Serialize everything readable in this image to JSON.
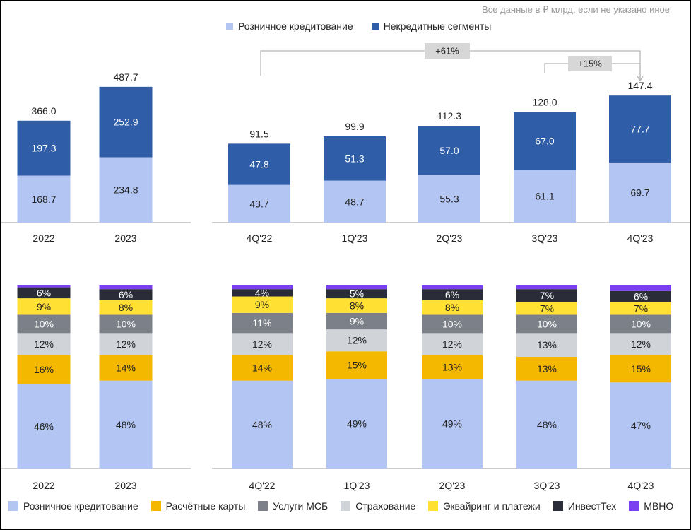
{
  "note": "Все данные в ₽ млрд, если не указано иное",
  "legend_top": [
    {
      "label": "Розничное кредитование",
      "color": "#b3c5f3"
    },
    {
      "label": "Некредитные сегменты",
      "color": "#2f5da8"
    }
  ],
  "legend_bottom": [
    {
      "label": "Розничное кредитование",
      "color": "#b3c5f3"
    },
    {
      "label": "Расчётные карты",
      "color": "#f5b800"
    },
    {
      "label": "Услуги МСБ",
      "color": "#7c8089"
    },
    {
      "label": "Страхование",
      "color": "#d0d3d8"
    },
    {
      "label": "Эквайринг и платежи",
      "color": "#ffe033"
    },
    {
      "label": "ИнвестТех",
      "color": "#2a2d38"
    },
    {
      "label": "МВНО",
      "color": "#7b3ff2"
    }
  ],
  "chart_data": [
    {
      "type": "bar",
      "stacked": true,
      "panel": "annual-revenue",
      "categories": [
        "2022",
        "2023"
      ],
      "series": [
        {
          "name": "Розничное кредитование",
          "values": [
            168.7,
            234.8
          ],
          "labels": [
            "168.7",
            "234.8"
          ]
        },
        {
          "name": "Некредитные сегменты",
          "values": [
            197.3,
            252.9
          ],
          "labels": [
            "197.3",
            "252.9"
          ]
        }
      ],
      "totals": [
        "366.0",
        "487.7"
      ]
    },
    {
      "type": "bar",
      "stacked": true,
      "panel": "quarterly-revenue",
      "categories": [
        "4Q'22",
        "1Q'23",
        "2Q'23",
        "3Q'23",
        "4Q'23"
      ],
      "series": [
        {
          "name": "Розничное кредитование",
          "values": [
            43.7,
            48.7,
            55.3,
            61.1,
            69.7
          ],
          "labels": [
            "43.7",
            "48.7",
            "55.3",
            "61.1",
            "69.7"
          ]
        },
        {
          "name": "Некредитные сегменты",
          "values": [
            47.8,
            51.3,
            57.0,
            67.0,
            77.7
          ],
          "labels": [
            "47.8",
            "51.3",
            "57.0",
            "67.0",
            "77.7"
          ]
        }
      ],
      "totals": [
        "91.5",
        "99.9",
        "112.3",
        "128.0",
        "147.4"
      ],
      "annotations": [
        "+61%",
        "+15%"
      ]
    },
    {
      "type": "bar",
      "stacked": true,
      "percent": true,
      "panel": "annual-structure",
      "categories": [
        "2022",
        "2023"
      ],
      "series": [
        {
          "name": "Розничное кредитование",
          "values": [
            46,
            48
          ],
          "labels": [
            "46%",
            "48%"
          ]
        },
        {
          "name": "Расчётные карты",
          "values": [
            16,
            14
          ],
          "labels": [
            "16%",
            "14%"
          ]
        },
        {
          "name": "Страхование",
          "values": [
            12,
            12
          ],
          "labels": [
            "12%",
            "12%"
          ]
        },
        {
          "name": "Услуги МСБ",
          "values": [
            10,
            10
          ],
          "labels": [
            "10%",
            "10%"
          ]
        },
        {
          "name": "Эквайринг и платежи",
          "values": [
            9,
            8
          ],
          "labels": [
            "9%",
            "8%"
          ]
        },
        {
          "name": "ИнвестТех",
          "values": [
            6,
            6
          ],
          "labels": [
            "6%",
            "6%"
          ]
        },
        {
          "name": "МВНО",
          "values": [
            1,
            2
          ],
          "labels": [
            "",
            ""
          ]
        }
      ]
    },
    {
      "type": "bar",
      "stacked": true,
      "percent": true,
      "panel": "quarterly-structure",
      "categories": [
        "4Q'22",
        "1Q'23",
        "2Q'23",
        "3Q'23",
        "4Q'23"
      ],
      "series": [
        {
          "name": "Розничное кредитование",
          "values": [
            48,
            49,
            49,
            48,
            47
          ],
          "labels": [
            "48%",
            "49%",
            "49%",
            "48%",
            "47%"
          ]
        },
        {
          "name": "Расчётные карты",
          "values": [
            14,
            15,
            13,
            13,
            15
          ],
          "labels": [
            "14%",
            "15%",
            "13%",
            "13%",
            "15%"
          ]
        },
        {
          "name": "Страхование",
          "values": [
            12,
            12,
            12,
            13,
            12
          ],
          "labels": [
            "12%",
            "12%",
            "12%",
            "13%",
            "12%"
          ]
        },
        {
          "name": "Услуги МСБ",
          "values": [
            11,
            9,
            10,
            10,
            10
          ],
          "labels": [
            "11%",
            "9%",
            "10%",
            "10%",
            "10%"
          ]
        },
        {
          "name": "Эквайринг и платежи",
          "values": [
            9,
            8,
            8,
            7,
            7
          ],
          "labels": [
            "9%",
            "8%",
            "8%",
            "7%",
            "7%"
          ]
        },
        {
          "name": "ИнвестТех",
          "values": [
            4,
            5,
            6,
            7,
            6
          ],
          "labels": [
            "4%",
            "5%",
            "6%",
            "7%",
            "6%"
          ]
        },
        {
          "name": "МВНО",
          "values": [
            2,
            2,
            2,
            2,
            3
          ],
          "labels": [
            "",
            "",
            "",
            "",
            ""
          ]
        }
      ]
    }
  ]
}
